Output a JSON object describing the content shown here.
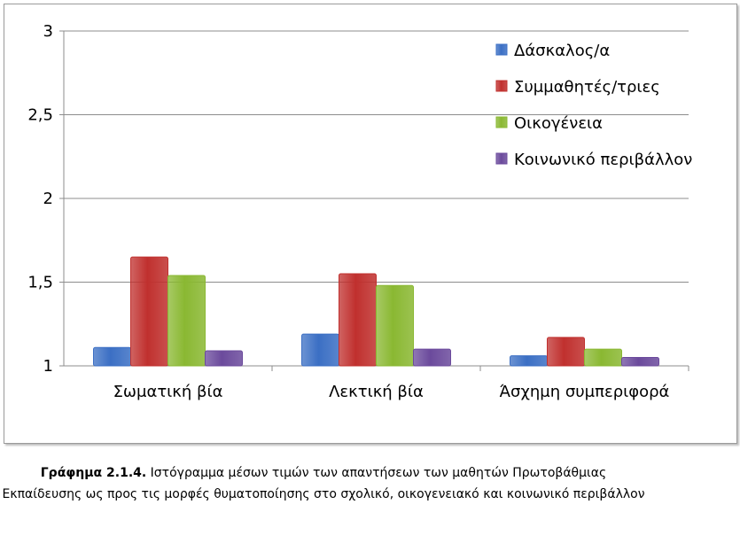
{
  "chart_data": {
    "type": "bar",
    "categories": [
      "Σωματική βία",
      "Λεκτική βία",
      "Άσχημη συμπεριφορά"
    ],
    "series": [
      {
        "name": "Δάσκαλος/α",
        "values": [
          1.11,
          1.19,
          1.06
        ],
        "color": "#3b6fc4"
      },
      {
        "name": "Συμμαθητές/τριες",
        "values": [
          1.65,
          1.55,
          1.17
        ],
        "color": "#c0302e"
      },
      {
        "name": "Οικογένεια",
        "values": [
          1.54,
          1.48,
          1.1
        ],
        "color": "#8ab832"
      },
      {
        "name": "Κοινωνικό περιβάλλον",
        "values": [
          1.09,
          1.1,
          1.05
        ],
        "color": "#6b4a9c"
      }
    ],
    "yticks": [
      "1",
      "1,5",
      "2",
      "2,5",
      "3"
    ],
    "ylim": [
      1,
      3
    ],
    "grid": true,
    "legend": "top-right"
  },
  "caption": {
    "figure_number": "Γράφημα 2.1.4.",
    "text": "Ιστόγραμμα μέσων τιμών των απαντήσεων των μαθητών Πρωτοβάθμιας Εκπαίδευσης ως προς τις μορφές θυματοποίησης στο σχολικό, οικογενειακό και κοινωνικό περιβάλλον"
  }
}
